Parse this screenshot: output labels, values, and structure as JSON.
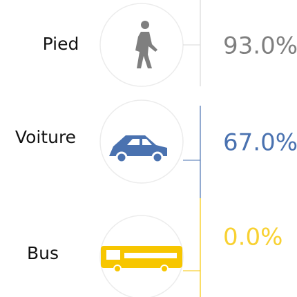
{
  "chart_data": {
    "type": "icon-percent",
    "categories": [
      "Pied",
      "Voiture",
      "Bus"
    ],
    "values": [
      93,
      67,
      0
    ],
    "value_labels": [
      "93.0%",
      "67.0%",
      "0.0%"
    ],
    "colors": [
      "#7f7f7f",
      "#4a72b0",
      "#f7c600"
    ]
  }
}
